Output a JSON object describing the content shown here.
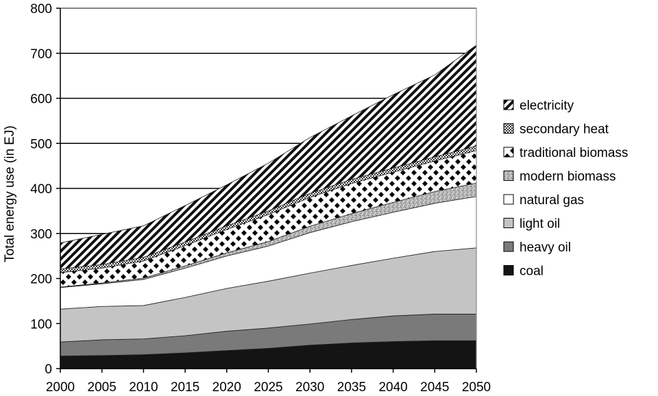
{
  "chart_data": {
    "type": "area",
    "stacked": true,
    "ylabel": "Total energy use (in EJ)",
    "xlabel": "",
    "ylim": [
      0,
      800
    ],
    "yticks": [
      0,
      100,
      200,
      300,
      400,
      500,
      600,
      700,
      800
    ],
    "x": [
      2000,
      2005,
      2010,
      2015,
      2020,
      2025,
      2030,
      2035,
      2040,
      2045,
      2050
    ],
    "grid": "horizontal",
    "legend_position": "right",
    "series": [
      {
        "name": "coal",
        "pattern": "solid-black",
        "values": [
          28,
          29,
          31,
          35,
          40,
          45,
          52,
          57,
          60,
          62,
          62
        ]
      },
      {
        "name": "heavy oil",
        "pattern": "solid-dark-gray",
        "values": [
          31,
          35,
          35,
          38,
          43,
          45,
          47,
          52,
          57,
          59,
          59
        ]
      },
      {
        "name": "light oil",
        "pattern": "solid-light-gray",
        "values": [
          73,
          74,
          74,
          85,
          95,
          104,
          113,
          120,
          128,
          139,
          147
        ]
      },
      {
        "name": "natural gas",
        "pattern": "solid-white",
        "values": [
          48,
          50,
          58,
          65,
          72,
          78,
          90,
          97,
          102,
          107,
          114
        ]
      },
      {
        "name": "modern biomass",
        "pattern": "speckled-gray",
        "values": [
          1,
          2,
          3,
          5,
          7,
          10,
          14,
          18,
          22,
          26,
          30
        ]
      },
      {
        "name": "traditional biomass",
        "pattern": "black-diamonds",
        "values": [
          32,
          33,
          38,
          45,
          52,
          60,
          64,
          67,
          67,
          68,
          72
        ]
      },
      {
        "name": "secondary heat",
        "pattern": "crosshatch",
        "values": [
          8,
          8,
          8,
          8,
          8,
          8,
          9,
          9,
          9,
          9,
          10
        ]
      },
      {
        "name": "electricity",
        "pattern": "diagonal-stripes",
        "values": [
          58,
          67,
          70,
          81,
          91,
          106,
          124,
          141,
          163,
          182,
          224
        ]
      }
    ]
  }
}
